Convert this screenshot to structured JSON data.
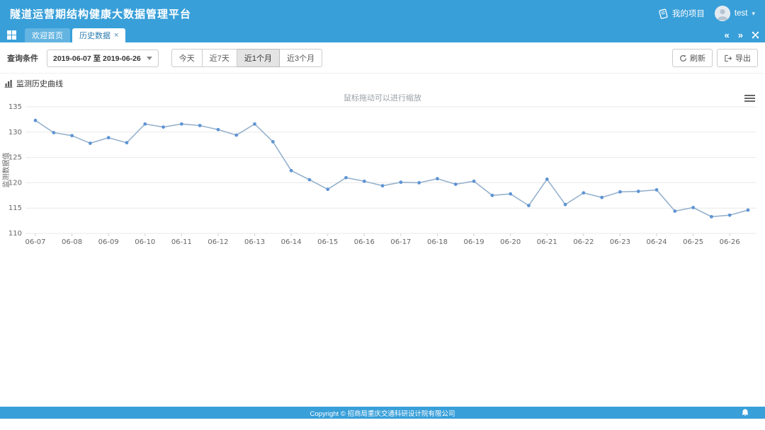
{
  "header": {
    "title": "隧道运营期结构健康大数据管理平台",
    "project_label": "我的项目",
    "username": "test"
  },
  "icons": {
    "caret_down": "▾",
    "scroll_left": "«",
    "scroll_right": "»"
  },
  "tabbar": {
    "tabs": [
      {
        "label": "欢迎首页",
        "active": false
      },
      {
        "label": "历史数据",
        "active": true
      }
    ],
    "close_glyph": "×"
  },
  "filters": {
    "query_label": "查询条件",
    "date_range": "2019-06-07 至 2019-06-26",
    "quick_ranges": [
      "今天",
      "近7天",
      "近1个月",
      "近3个月"
    ],
    "active_range": "近1个月",
    "refresh_label": "刷新",
    "export_label": "导出"
  },
  "section": {
    "title": "监测历史曲线"
  },
  "chart_data": {
    "type": "line",
    "subtitle": "鼠标拖动可以进行缩放",
    "ylabel": "监测数据值",
    "ylim": [
      110,
      135
    ],
    "yticks": [
      110,
      115,
      120,
      125,
      130,
      135
    ],
    "categories": [
      "06-07",
      "06-08",
      "06-09",
      "06-10",
      "06-11",
      "06-12",
      "06-13",
      "06-14",
      "06-15",
      "06-16",
      "06-17",
      "06-18",
      "06-19",
      "06-20",
      "06-21",
      "06-22",
      "06-23",
      "06-24",
      "06-25",
      "06-26"
    ],
    "points_per_category": 2,
    "values": [
      132.3,
      129.9,
      129.3,
      127.8,
      128.9,
      127.9,
      131.6,
      131.0,
      131.6,
      131.3,
      130.5,
      129.4,
      131.6,
      128.1,
      122.4,
      120.6,
      118.7,
      121.0,
      120.3,
      119.4,
      120.1,
      120.0,
      120.8,
      119.7,
      120.3,
      117.5,
      117.8,
      115.5,
      120.7,
      115.7,
      118.0,
      117.1,
      118.2,
      118.3,
      118.6,
      114.4,
      115.1,
      113.3,
      113.6,
      114.6
    ],
    "grid": true,
    "legend": "none",
    "line_color": "#96b2cd",
    "marker_color": "#5e94d4",
    "grid_color": "#e8e8e8",
    "axis_text_color": "#666666"
  },
  "colors": {
    "primary": "#389fd9"
  },
  "footer": {
    "copyright": "Copyright © 招商局重庆交通科研设计院有限公司"
  }
}
